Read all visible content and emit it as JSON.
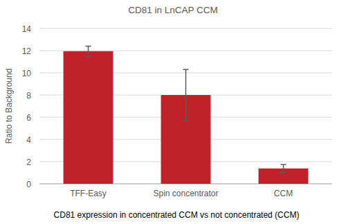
{
  "chart_data": {
    "type": "bar",
    "title": "CD81 in LnCAP CCM",
    "y_label": "Ratio to Background",
    "x_label": "CD81 expression in concentrated CCM vs not concentrated (CCM)",
    "categories": [
      "TFF-Easy",
      "Spin concentrator",
      "CCM"
    ],
    "values": [
      11.95,
      8.0,
      1.38
    ],
    "errors": [
      0.45,
      2.3,
      0.35
    ],
    "color": "#c0222b",
    "ylim": [
      0,
      14
    ],
    "yticks": [
      0,
      2,
      4,
      6,
      8,
      10,
      12,
      14
    ],
    "grid": true
  }
}
